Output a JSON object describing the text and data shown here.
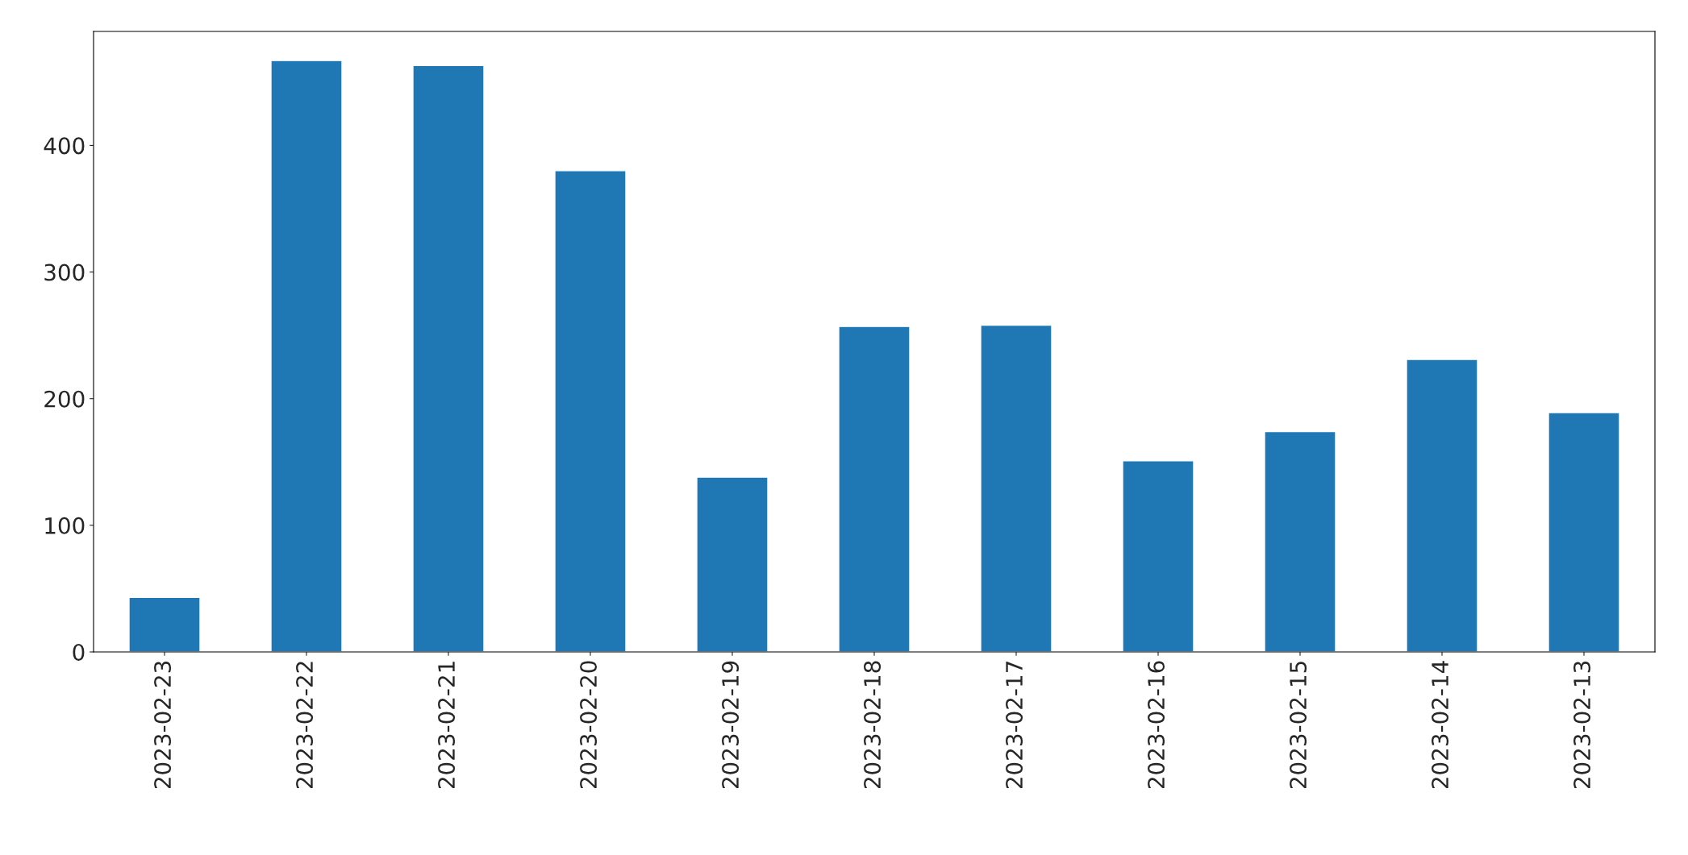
{
  "chart_data": {
    "type": "bar",
    "categories": [
      "2023-02-23",
      "2023-02-22",
      "2023-02-21",
      "2023-02-20",
      "2023-02-19",
      "2023-02-18",
      "2023-02-17",
      "2023-02-16",
      "2023-02-15",
      "2023-02-14",
      "2023-02-13"
    ],
    "values": [
      43,
      467,
      463,
      380,
      138,
      257,
      258,
      151,
      174,
      231,
      189
    ],
    "color": "#1f77b4",
    "ylim": [
      0,
      490
    ],
    "yticks": [
      0,
      100,
      200,
      300,
      400
    ],
    "grid": false,
    "legend": false
  }
}
